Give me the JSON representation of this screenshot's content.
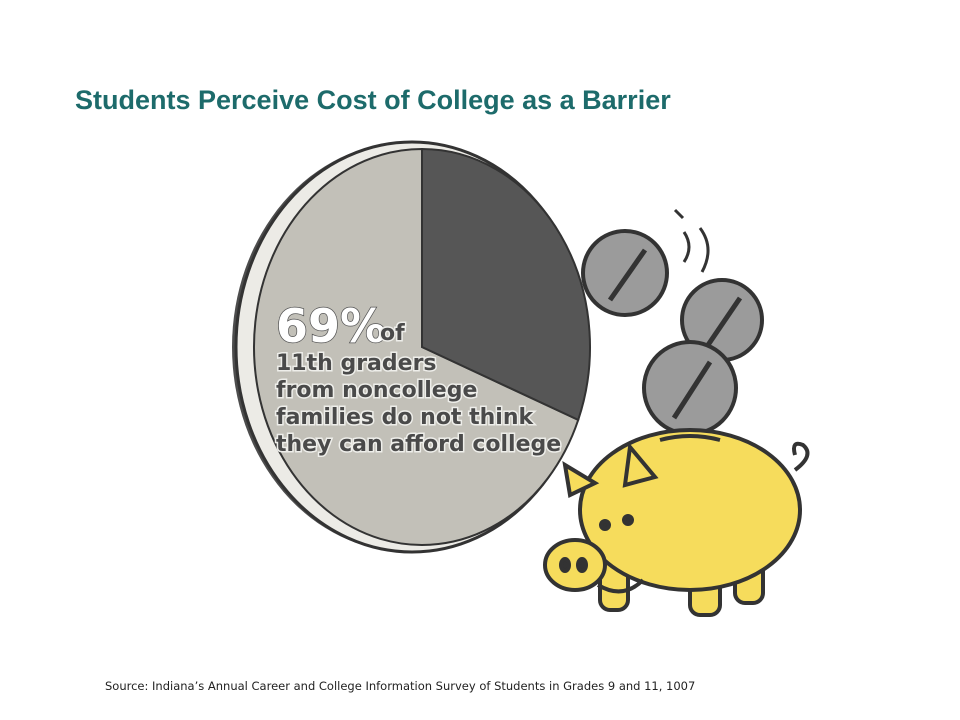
{
  "chart_data": {
    "type": "pie",
    "title": "Students Perceive Cost of College as a Barrier",
    "values": [
      69,
      31
    ],
    "value_labels": [
      "69%",
      null
    ],
    "colors": [
      "#c2c0b8",
      "#565656"
    ],
    "annotation": [
      "of",
      "11th graders",
      "from noncollege",
      "families do not think",
      "they can afford college"
    ],
    "source": "Source:  Indiana’s Annual Career and College Information Survey of Students in Grades 9 and 11, 1007"
  }
}
